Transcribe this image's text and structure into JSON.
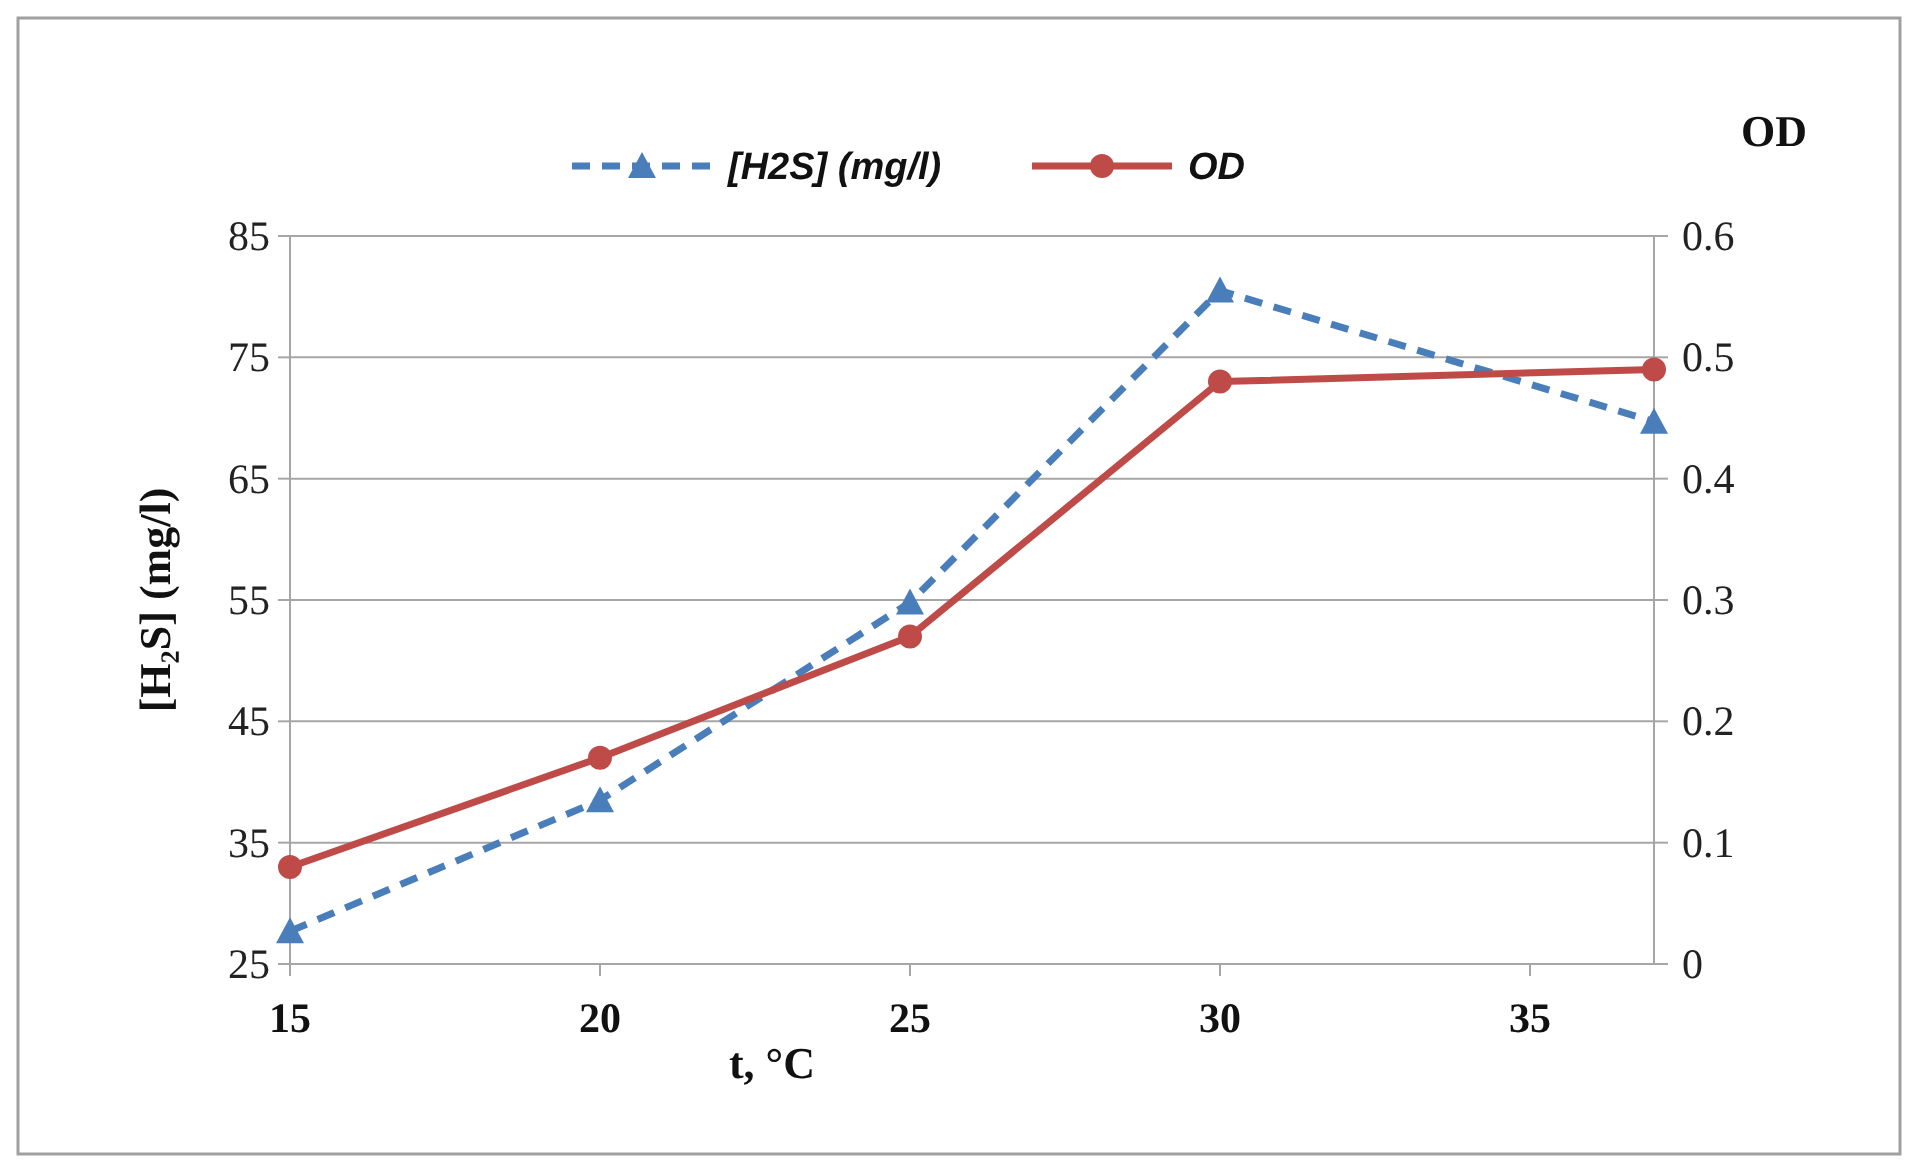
{
  "chart_data": {
    "type": "line",
    "x": [
      15,
      20,
      25,
      30,
      37
    ],
    "xlim": [
      15,
      37
    ],
    "xticks": [
      15,
      20,
      25,
      30,
      35
    ],
    "ylim": [
      25,
      85
    ],
    "yticks": [
      25,
      35,
      45,
      55,
      65,
      75,
      85
    ],
    "y2lim": [
      0,
      0.6
    ],
    "y2ticks": [
      0,
      0.1,
      0.2,
      0.3,
      0.4,
      0.5,
      0.6
    ],
    "xlabel": "t, °C",
    "ylabel": "[H₂S] (mg/l)",
    "y2label": "OD",
    "grid": "y",
    "legend": "top",
    "series": [
      {
        "name": "[H2S] (mg/l)",
        "color": "#4a7ebb",
        "values": [
          27.7,
          38.5,
          54.8,
          80.5,
          69.7
        ],
        "marker": "triangle",
        "line_style": "dashed"
      },
      {
        "name": "OD",
        "color": "#be4b48",
        "values": [
          0.08,
          0.17,
          0.27,
          0.48,
          0.49
        ],
        "axis": "y2",
        "marker": "circle",
        "line_style": "solid"
      }
    ]
  }
}
